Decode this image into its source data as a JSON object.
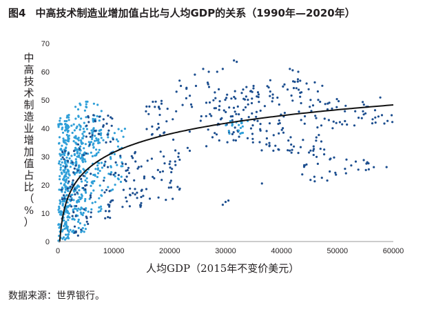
{
  "figure": {
    "number": "图4",
    "title": "中高技术制造业增加值占比与人均GDP的关系（1990年—2020年）",
    "source": "数据来源：世界银行。"
  },
  "chart_data": {
    "type": "scatter",
    "xlabel": "人均GDP（2015年不变价美元）",
    "ylabel": "中高技术制造业增加值占比（%）",
    "xlim": [
      0,
      60000
    ],
    "ylim": [
      0,
      70
    ],
    "xticks": [
      "0",
      "10000",
      "20000",
      "30000",
      "40000",
      "50000",
      "60000"
    ],
    "yticks": [
      "0",
      "10",
      "20",
      "30",
      "40",
      "50",
      "60",
      "70"
    ],
    "grid": false,
    "legend": "none",
    "colors": {
      "high_income": "#1c4e8f",
      "low_income": "#2f9fd8",
      "trend": "#111111"
    },
    "trendline": {
      "form": "logarithmic",
      "points": [
        [
          250,
          1
        ],
        [
          1000,
          10
        ],
        [
          3000,
          19
        ],
        [
          5000,
          23
        ],
        [
          10000,
          29.5
        ],
        [
          20000,
          35
        ],
        [
          30000,
          38.5
        ],
        [
          40000,
          40.8
        ],
        [
          50000,
          42.5
        ],
        [
          60000,
          43.8
        ]
      ]
    },
    "clusters": [
      {
        "x": [
          100,
          2000
        ],
        "y": [
          0,
          45
        ],
        "n": 200,
        "color": "low_income"
      },
      {
        "x": [
          1000,
          5000
        ],
        "y": [
          3,
          42
        ],
        "n": 190,
        "color": "low_income"
      },
      {
        "x": [
          3000,
          8000
        ],
        "y": [
          10,
          50
        ],
        "n": 150,
        "color": "low_income"
      },
      {
        "x": [
          500,
          6000
        ],
        "y": [
          2,
          35
        ],
        "n": 60,
        "color": "high_income"
      },
      {
        "x": [
          6000,
          12000
        ],
        "y": [
          18,
          40
        ],
        "n": 60,
        "color": "low_income"
      },
      {
        "x": [
          5000,
          10000
        ],
        "y": [
          35,
          45
        ],
        "n": 30,
        "color": "high_income"
      },
      {
        "x": [
          8000,
          14000
        ],
        "y": [
          8,
          32
        ],
        "n": 40,
        "color": "high_income"
      },
      {
        "x": [
          12000,
          22000
        ],
        "y": [
          12,
          32
        ],
        "n": 60,
        "color": "high_income"
      },
      {
        "x": [
          15000,
          20000
        ],
        "y": [
          35,
          50
        ],
        "n": 25,
        "color": "high_income"
      },
      {
        "x": [
          20000,
          28000
        ],
        "y": [
          30,
          58
        ],
        "n": 30,
        "color": "high_income"
      },
      {
        "x": [
          28000,
          36000
        ],
        "y": [
          35,
          55
        ],
        "n": 80,
        "color": "high_income"
      },
      {
        "x": [
          30000,
          34000
        ],
        "y": [
          38,
          43
        ],
        "n": 20,
        "color": "low_income"
      },
      {
        "x": [
          36000,
          48000
        ],
        "y": [
          30,
          58
        ],
        "n": 100,
        "color": "high_income"
      },
      {
        "x": [
          43000,
          50000
        ],
        "y": [
          20,
          30
        ],
        "n": 18,
        "color": "high_income"
      },
      {
        "x": [
          48000,
          60000
        ],
        "y": [
          40,
          52
        ],
        "n": 40,
        "color": "high_income"
      },
      {
        "x": [
          51000,
          59000
        ],
        "y": [
          24,
          29
        ],
        "n": 14,
        "color": "high_income"
      }
    ],
    "points": [
      {
        "x": 26000,
        "y": 61
      },
      {
        "x": 27000,
        "y": 60
      },
      {
        "x": 28500,
        "y": 60
      },
      {
        "x": 29500,
        "y": 61
      },
      {
        "x": 31500,
        "y": 64
      },
      {
        "x": 32000,
        "y": 63.5
      },
      {
        "x": 41500,
        "y": 61
      },
      {
        "x": 42000,
        "y": 60.5
      },
      {
        "x": 43000,
        "y": 60
      },
      {
        "x": 29500,
        "y": 13
      },
      {
        "x": 30000,
        "y": 14
      },
      {
        "x": 30500,
        "y": 14.5
      },
      {
        "x": 36500,
        "y": 20.5
      },
      {
        "x": 24500,
        "y": 59
      },
      {
        "x": 22000,
        "y": 55
      },
      {
        "x": 23000,
        "y": 54
      },
      {
        "x": 38000,
        "y": 57
      },
      {
        "x": 35000,
        "y": 55
      }
    ]
  }
}
